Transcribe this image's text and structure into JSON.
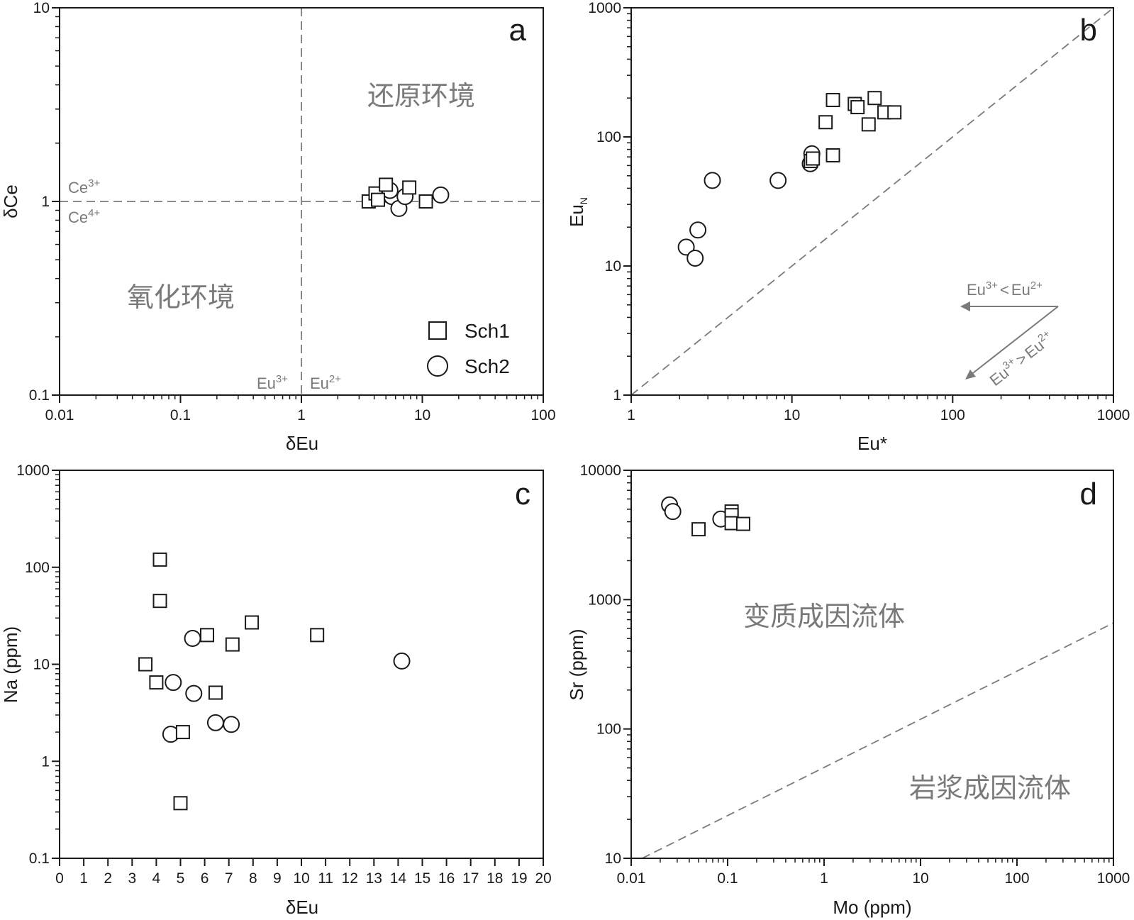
{
  "colors": {
    "axis": "#1a1a1a",
    "marker_stroke": "#1a1a1a",
    "marker_fill": "#ffffff",
    "annotation": "#7a7a7a",
    "reference_line": "#7a7a7a"
  },
  "legend": {
    "items": [
      {
        "symbol": "square",
        "label": "Sch1"
      },
      {
        "symbol": "circle",
        "label": "Sch2"
      }
    ]
  },
  "chart_data": [
    {
      "type": "scatter",
      "panel_label": "a",
      "xlabel": "δEu",
      "ylabel": "δCe",
      "x_scale": "log",
      "y_scale": "log",
      "xlim": [
        0.01,
        100
      ],
      "ylim": [
        0.1,
        10
      ],
      "x_ticks": [
        0.01,
        0.1,
        1,
        10,
        100
      ],
      "x_tick_labels": [
        "0.01",
        "0.1",
        "1",
        "10",
        "100"
      ],
      "y_ticks": [
        0.1,
        1,
        10
      ],
      "y_tick_labels": [
        "0.1",
        "1",
        "10"
      ],
      "grid": false,
      "reference_lines": [
        {
          "type": "vertical",
          "x": 1,
          "style": "dashed"
        },
        {
          "type": "horizontal",
          "y": 1,
          "style": "dashed"
        }
      ],
      "annotations": [
        {
          "text": "还原环境"
        },
        {
          "text": "氧化环境"
        },
        {
          "base": "Ce",
          "sup": "3+"
        },
        {
          "base": "Ce",
          "sup": "4+"
        },
        {
          "base": "Eu",
          "sup": "3+"
        },
        {
          "base": "Eu",
          "sup": "2+"
        }
      ],
      "series": [
        {
          "name": "Sch1",
          "marker": "square",
          "points": [
            [
              3.6,
              1.0
            ],
            [
              4.1,
              1.1
            ],
            [
              5.0,
              1.22
            ],
            [
              7.8,
              1.18
            ],
            [
              10.7,
              1.0
            ],
            [
              4.3,
              1.02
            ]
          ]
        },
        {
          "name": "Sch2",
          "marker": "circle",
          "points": [
            [
              4.6,
              1.08
            ],
            [
              5.6,
              1.06
            ],
            [
              6.4,
              0.92
            ],
            [
              7.2,
              1.06
            ],
            [
              14.2,
              1.08
            ],
            [
              5.4,
              1.14
            ]
          ]
        }
      ]
    },
    {
      "type": "scatter",
      "panel_label": "b",
      "xlabel": "Eu*",
      "ylabel": "Eu",
      "ylabel_subscript": "N",
      "x_scale": "log",
      "y_scale": "log",
      "xlim": [
        1,
        1000
      ],
      "ylim": [
        1,
        1000
      ],
      "x_ticks": [
        1,
        10,
        100,
        1000
      ],
      "x_tick_labels": [
        "1",
        "10",
        "100",
        "1000"
      ],
      "y_ticks": [
        1,
        10,
        100,
        1000
      ],
      "y_tick_labels": [
        "1",
        "10",
        "100",
        "1000"
      ],
      "grid": false,
      "reference_lines": [
        {
          "type": "diagonal",
          "from": [
            1,
            1
          ],
          "to": [
            1000,
            1000
          ],
          "style": "dashed"
        }
      ],
      "annotations": [
        {
          "parts": [
            {
              "base": "Eu",
              "sup": "3+"
            },
            {
              "text": "<"
            },
            {
              "base": "Eu",
              "sup": "2+"
            }
          ],
          "arrow": "left"
        },
        {
          "parts": [
            {
              "base": "Eu",
              "sup": "3+"
            },
            {
              "text": ">"
            },
            {
              "base": "Eu",
              "sup": "2+"
            }
          ],
          "arrow": "down-left"
        }
      ],
      "series": [
        {
          "name": "Sch1",
          "marker": "square",
          "points": [
            [
              13.1,
              65
            ],
            [
              13.5,
              68
            ],
            [
              16.2,
              130
            ],
            [
              18.0,
              72
            ],
            [
              18.0,
              193
            ],
            [
              24.6,
              180
            ],
            [
              25.6,
              170
            ],
            [
              30.0,
              125
            ],
            [
              32.7,
              200
            ],
            [
              37.6,
              155
            ],
            [
              43.4,
              155
            ]
          ]
        },
        {
          "name": "Sch2",
          "marker": "circle",
          "points": [
            [
              2.2,
              14
            ],
            [
              2.5,
              11.5
            ],
            [
              2.6,
              19
            ],
            [
              3.2,
              46
            ],
            [
              8.2,
              46
            ],
            [
              13.0,
              62
            ],
            [
              13.3,
              74
            ]
          ]
        }
      ]
    },
    {
      "type": "scatter",
      "panel_label": "c",
      "xlabel": "δEu",
      "ylabel": "Na (ppm)",
      "x_scale": "linear",
      "y_scale": "log",
      "xlim": [
        0,
        20
      ],
      "ylim": [
        0.1,
        1000
      ],
      "x_ticks": [
        0,
        1,
        2,
        3,
        4,
        5,
        6,
        7,
        8,
        9,
        10,
        11,
        12,
        13,
        14,
        15,
        16,
        17,
        18,
        19,
        20
      ],
      "x_tick_labels": [
        "0",
        "1",
        "2",
        "3",
        "4",
        "5",
        "6",
        "7",
        "8",
        "9",
        "10",
        "11",
        "12",
        "13",
        "14",
        "15",
        "16",
        "17",
        "18",
        "19",
        "20"
      ],
      "y_ticks": [
        0.1,
        1,
        10,
        100,
        1000
      ],
      "y_tick_labels": [
        "0.1",
        "1",
        "10",
        "100",
        "1000"
      ],
      "grid": false,
      "series": [
        {
          "name": "Sch1",
          "marker": "square",
          "points": [
            [
              4.15,
              120
            ],
            [
              4.15,
              45
            ],
            [
              3.55,
              10
            ],
            [
              4.0,
              6.5
            ],
            [
              6.1,
              20
            ],
            [
              7.15,
              16
            ],
            [
              7.95,
              27
            ],
            [
              10.65,
              20
            ],
            [
              6.45,
              5.1
            ],
            [
              5.1,
              2.0
            ],
            [
              5.0,
              0.37
            ]
          ]
        },
        {
          "name": "Sch2",
          "marker": "circle",
          "points": [
            [
              5.5,
              18.5
            ],
            [
              4.7,
              6.5
            ],
            [
              5.55,
              5.0
            ],
            [
              6.45,
              2.5
            ],
            [
              7.1,
              2.4
            ],
            [
              4.6,
              1.9
            ],
            [
              14.15,
              10.8
            ]
          ]
        }
      ]
    },
    {
      "type": "scatter",
      "panel_label": "d",
      "xlabel": "Mo (ppm)",
      "ylabel": "Sr (ppm)",
      "x_scale": "log",
      "y_scale": "log",
      "xlim": [
        0.01,
        1000
      ],
      "ylim": [
        10,
        10000
      ],
      "x_ticks": [
        0.01,
        0.1,
        1,
        10,
        100,
        1000
      ],
      "x_tick_labels": [
        "0.01",
        "0.1",
        "1",
        "10",
        "100",
        "1000"
      ],
      "y_ticks": [
        10,
        100,
        1000,
        10000
      ],
      "y_tick_labels": [
        "10",
        "100",
        "1000",
        "10000"
      ],
      "grid": false,
      "reference_lines": [
        {
          "type": "line",
          "from": [
            0.013,
            10
          ],
          "to": [
            1000,
            660
          ],
          "style": "dashed"
        }
      ],
      "annotations": [
        {
          "text": "变质成因流体"
        },
        {
          "text": "岩浆成因流体"
        }
      ],
      "series": [
        {
          "name": "Sch1",
          "marker": "square",
          "points": [
            [
              0.05,
              3500
            ],
            [
              0.11,
              4800
            ],
            [
              0.11,
              4500
            ],
            [
              0.11,
              3900
            ],
            [
              0.145,
              3850
            ]
          ]
        },
        {
          "name": "Sch2",
          "marker": "circle",
          "points": [
            [
              0.025,
              5400
            ],
            [
              0.027,
              4800
            ],
            [
              0.085,
              4200
            ]
          ]
        }
      ]
    }
  ]
}
